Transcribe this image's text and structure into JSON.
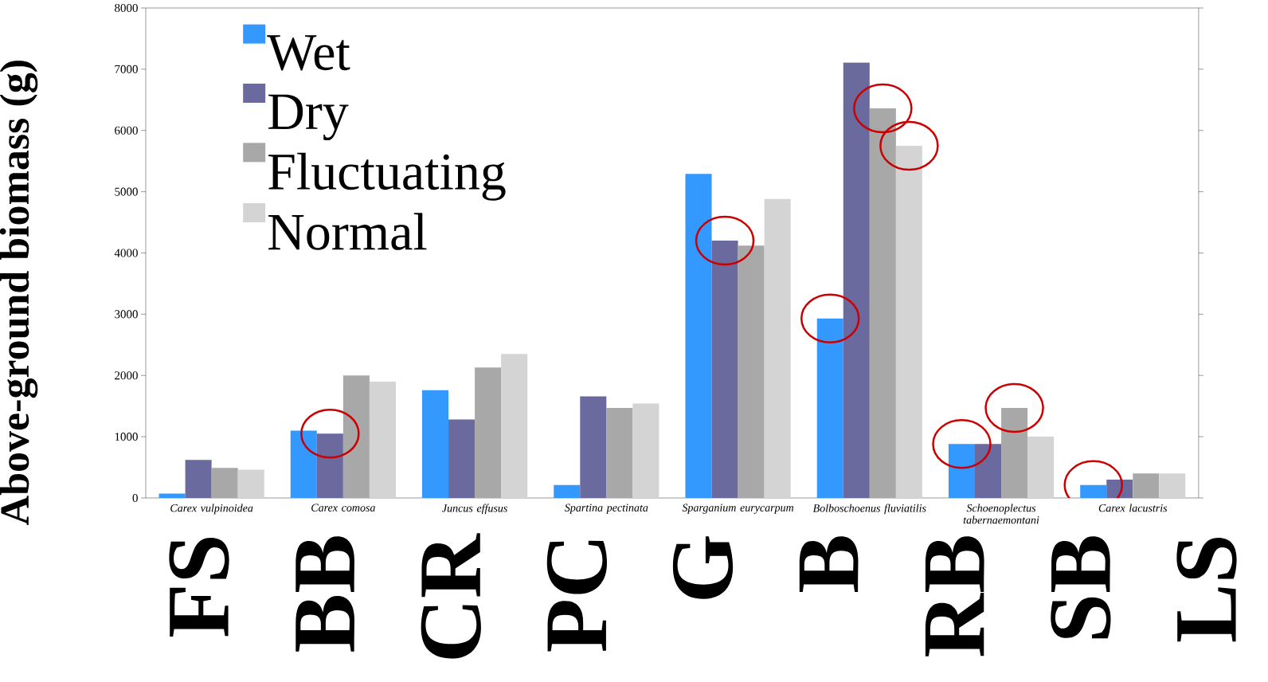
{
  "chart_data": {
    "type": "bar",
    "ylabel": "Above-ground biomass (g)",
    "categories": [
      "Carex vulpinoidea",
      "Carex comosa",
      "Juncus effusus",
      "Spartina pectinata",
      "Sparganium eurycarpum",
      "Bolboschoenus fluviatilis",
      "Schoenoplectus tabernaemontani",
      "Carex lacustris"
    ],
    "series": [
      {
        "name": "Wet",
        "color": "#3399ff",
        "values": [
          70,
          1100,
          1760,
          210,
          5290,
          2930,
          880,
          210
        ]
      },
      {
        "name": "Dry",
        "color": "#6a6a9e",
        "values": [
          620,
          1050,
          1280,
          1660,
          4200,
          7110,
          880,
          300
        ]
      },
      {
        "name": "Fluctuating",
        "color": "#a8a8a8",
        "values": [
          490,
          2000,
          2130,
          1470,
          4120,
          6360,
          1470,
          400
        ]
      },
      {
        "name": "Normal",
        "color": "#d4d4d4",
        "values": [
          460,
          1900,
          2350,
          1540,
          4880,
          5750,
          1000,
          400
        ]
      }
    ],
    "ylim": [
      0,
      8000
    ],
    "yticks": [
      0,
      1000,
      2000,
      3000,
      4000,
      5000,
      6000,
      7000,
      8000
    ],
    "legend": "top left",
    "annotations": [
      "FS",
      "BB",
      "CR",
      "PC",
      "G",
      "B",
      "RB",
      "SB",
      "LS"
    ]
  }
}
